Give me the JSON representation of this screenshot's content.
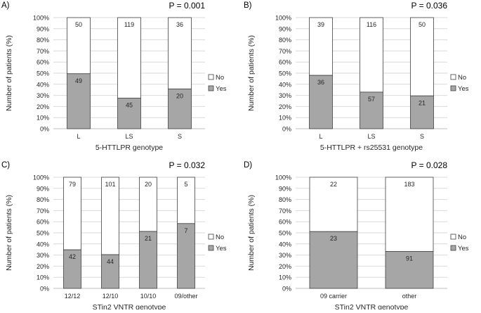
{
  "colors": {
    "yes": "#a6a6a6",
    "no": "#ffffff",
    "stroke": "#404040",
    "grid": "#d9d9d9",
    "text": "#262626"
  },
  "chart_data": [
    {
      "type": "bar",
      "stacked": "percent",
      "panel_label": "A)",
      "p_value": "P = 0.001",
      "ylabel": "Number of patients (%)",
      "xlabel": "5-HTTLPR genotype",
      "yticks": [
        "0%",
        "10%",
        "20%",
        "30%",
        "40%",
        "50%",
        "60%",
        "70%",
        "80%",
        "90%",
        "100%"
      ],
      "ylim": [
        0,
        100
      ],
      "legend_position": "right",
      "categories": [
        "L",
        "LS",
        "S"
      ],
      "series": [
        {
          "name": "Yes",
          "values": [
            49,
            45,
            20
          ]
        },
        {
          "name": "No",
          "values": [
            50,
            119,
            36
          ]
        }
      ]
    },
    {
      "type": "bar",
      "stacked": "percent",
      "panel_label": "B)",
      "p_value": "P = 0.036",
      "ylabel": "Number of patients (%)",
      "xlabel": "5-HTTLPR + rs25531 genotype",
      "yticks": [
        "0%",
        "10%",
        "20%",
        "30%",
        "40%",
        "50%",
        "60%",
        "70%",
        "80%",
        "90%",
        "100%"
      ],
      "ylim": [
        0,
        100
      ],
      "legend_position": "right",
      "categories": [
        "L",
        "LS",
        "S"
      ],
      "series": [
        {
          "name": "Yes",
          "values": [
            36,
            57,
            21
          ]
        },
        {
          "name": "No",
          "values": [
            39,
            116,
            50
          ]
        }
      ]
    },
    {
      "type": "bar",
      "stacked": "percent",
      "panel_label": "C)",
      "p_value": "P = 0.032",
      "ylabel": "Number of patients (%)",
      "xlabel": "STin2 VNTR genotype",
      "yticks": [
        "0%",
        "10%",
        "20%",
        "30%",
        "40%",
        "50%",
        "60%",
        "70%",
        "80%",
        "90%",
        "100%"
      ],
      "ylim": [
        0,
        100
      ],
      "legend_position": "right",
      "categories": [
        "12/12",
        "12/10",
        "10/10",
        "09/other"
      ],
      "series": [
        {
          "name": "Yes",
          "values": [
            42,
            44,
            21,
            7
          ]
        },
        {
          "name": "No",
          "values": [
            79,
            101,
            20,
            5
          ]
        }
      ]
    },
    {
      "type": "bar",
      "stacked": "percent",
      "panel_label": "D)",
      "p_value": "P = 0.028",
      "ylabel": "Number of patients (%)",
      "xlabel": "STin2 VNTR genotype",
      "yticks": [
        "0%",
        "10%",
        "20%",
        "30%",
        "40%",
        "50%",
        "60%",
        "70%",
        "80%",
        "90%",
        "100%"
      ],
      "ylim": [
        0,
        100
      ],
      "legend_position": "right",
      "categories": [
        "09 carrier",
        "other"
      ],
      "series": [
        {
          "name": "Yes",
          "values": [
            23,
            91
          ]
        },
        {
          "name": "No",
          "values": [
            22,
            183
          ]
        }
      ]
    }
  ]
}
